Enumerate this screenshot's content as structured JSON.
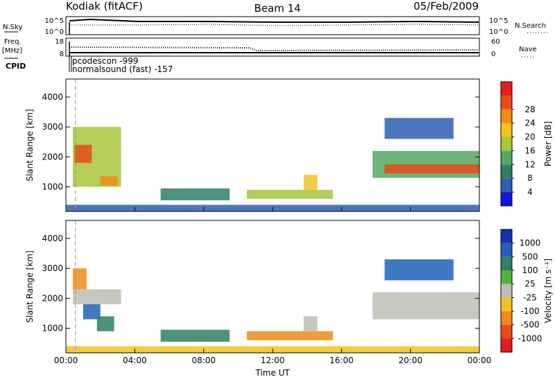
{
  "header": {
    "radar": "Kodiak (fitACF)",
    "beam": "Beam 14",
    "date": "05/Feb/2009"
  },
  "status_panels": {
    "nsky": {
      "label": "N.Sky",
      "ticks": [
        "10^5",
        "10^0"
      ]
    },
    "nsearch": {
      "label": "N.Search",
      "ticks": [
        "10^5",
        "10^0"
      ]
    },
    "freq": {
      "label_line1": "Freq.",
      "label_line2": "[MHz]",
      "ticks": [
        "18",
        "8"
      ]
    },
    "nave": {
      "label": "Nave",
      "ticks": [
        "60",
        "0"
      ]
    },
    "cpid": {
      "label": "CPID",
      "entries": [
        "pcodescon -999",
        "normalsound (fast) -157"
      ]
    }
  },
  "chart_data": [
    {
      "type": "heatmap",
      "title": "",
      "xlabel": "",
      "ylabel": "Slant Range [km]",
      "x_ticks": [
        "00:00",
        "04:00",
        "08:00",
        "12:00",
        "16:00",
        "20:00",
        "00:00"
      ],
      "y_ticks": [
        "1000",
        "2000",
        "3000",
        "4000"
      ],
      "xlim_hours": [
        0,
        24
      ],
      "ylim_km": [
        180,
        4600
      ],
      "colorbar": {
        "label": "Power [dB]",
        "ticks": [
          "4",
          "8",
          "12",
          "16",
          "20",
          "24",
          "28"
        ],
        "range": [
          0,
          32
        ],
        "colors": [
          "#1515e0",
          "#2d5fb0",
          "#2f7f62",
          "#56a861",
          "#a7c63a",
          "#f3c21d",
          "#f08a16",
          "#ea4a16",
          "#e81c1c"
        ]
      },
      "grid": false,
      "regions": [
        {
          "t0": 0.4,
          "t1": 3.2,
          "r0": 1000,
          "r1": 3000,
          "value": 16
        },
        {
          "t0": 0.5,
          "t1": 1.5,
          "r0": 1800,
          "r1": 2400,
          "value": 26
        },
        {
          "t0": 2.0,
          "t1": 3.0,
          "r0": 1050,
          "r1": 1350,
          "value": 24
        },
        {
          "t0": 5.5,
          "t1": 9.5,
          "r0": 550,
          "r1": 950,
          "value": 10
        },
        {
          "t0": 10.5,
          "t1": 15.5,
          "r0": 600,
          "r1": 900,
          "value": 16
        },
        {
          "t0": 13.8,
          "t1": 14.6,
          "r0": 900,
          "r1": 1400,
          "value": 18
        },
        {
          "t0": 17.8,
          "t1": 24.0,
          "r0": 1300,
          "r1": 2200,
          "value": 14
        },
        {
          "t0": 18.5,
          "t1": 24.0,
          "r0": 1450,
          "r1": 1750,
          "value": 26
        },
        {
          "t0": 18.5,
          "t1": 22.5,
          "r0": 2600,
          "r1": 3300,
          "value": 6
        },
        {
          "t0": 0.0,
          "t1": 24.0,
          "r0": 180,
          "r1": 400,
          "value": 6
        }
      ]
    },
    {
      "type": "heatmap",
      "title": "",
      "xlabel": "Time UT",
      "ylabel": "Slant Range [km]",
      "x_ticks": [
        "00:00",
        "04:00",
        "08:00",
        "12:00",
        "16:00",
        "20:00",
        "00:00"
      ],
      "y_ticks": [
        "1000",
        "2000",
        "3000",
        "4000"
      ],
      "xlim_hours": [
        0,
        24
      ],
      "ylim_km": [
        180,
        4600
      ],
      "colorbar": {
        "label": "Velocity [m s^-1]",
        "ticks": [
          "1000",
          "500",
          "100",
          "25",
          "-25",
          "-100",
          "-500",
          "-1000"
        ],
        "colors": [
          "#1a2fb5",
          "#1f62b8",
          "#2f7f62",
          "#4db53a",
          "#bdbdb3",
          "#f2c21d",
          "#f08a16",
          "#ea4a16",
          "#e81c1c"
        ]
      },
      "grid": false,
      "regions": [
        {
          "t0": 0.4,
          "t1": 1.2,
          "r0": 2300,
          "r1": 3000,
          "value": -400
        },
        {
          "t0": 0.4,
          "t1": 3.2,
          "r0": 1800,
          "r1": 2300,
          "value": 0
        },
        {
          "t0": 1.0,
          "t1": 2.0,
          "r0": 1300,
          "r1": 1800,
          "value": 700
        },
        {
          "t0": 1.8,
          "t1": 2.8,
          "r0": 900,
          "r1": 1400,
          "value": 200
        },
        {
          "t0": 5.5,
          "t1": 9.5,
          "r0": 550,
          "r1": 950,
          "value": 150
        },
        {
          "t0": 10.5,
          "t1": 15.5,
          "r0": 600,
          "r1": 900,
          "value": -150
        },
        {
          "t0": 13.8,
          "t1": 14.6,
          "r0": 900,
          "r1": 1400,
          "value": 0
        },
        {
          "t0": 17.8,
          "t1": 24.0,
          "r0": 1300,
          "r1": 2200,
          "value": 0
        },
        {
          "t0": 18.5,
          "t1": 22.5,
          "r0": 2600,
          "r1": 3300,
          "value": 600
        },
        {
          "t0": 0.0,
          "t1": 24.0,
          "r0": 180,
          "r1": 400,
          "value": -60
        }
      ]
    }
  ]
}
